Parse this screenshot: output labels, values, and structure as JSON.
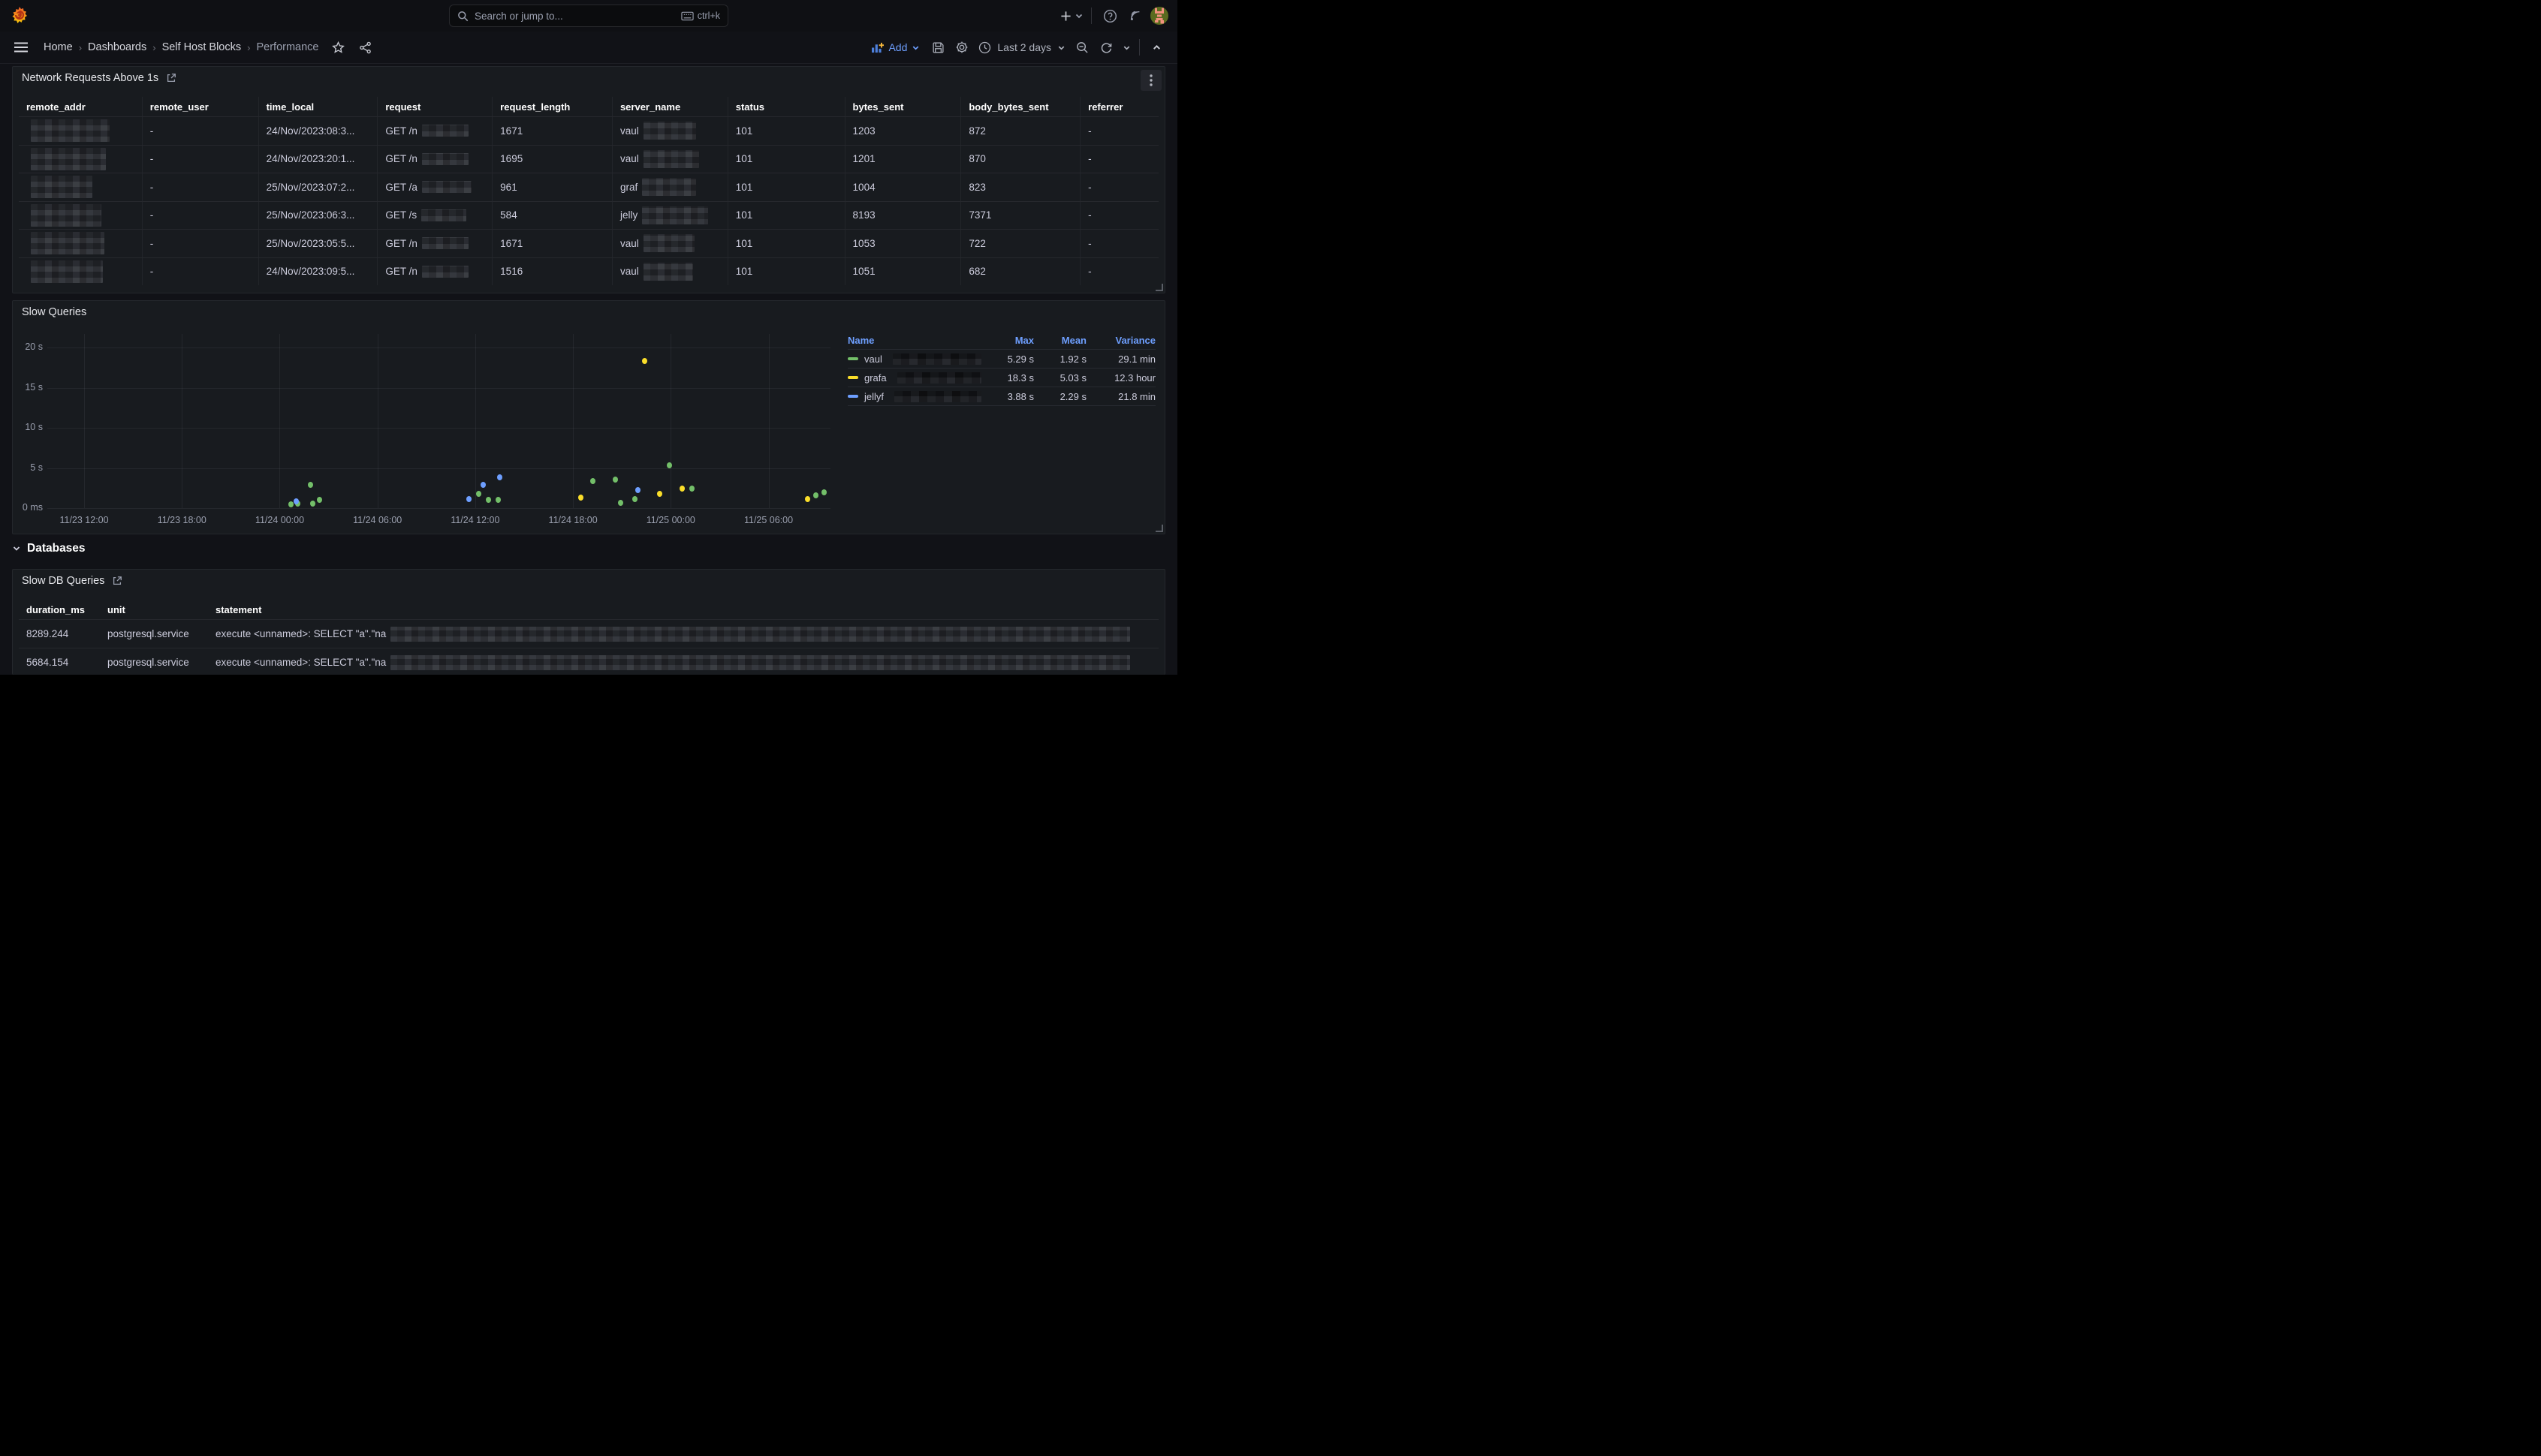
{
  "topnav": {
    "search_placeholder": "Search or jump to...",
    "shortcut_label": "ctrl+k"
  },
  "breadcrumbs": [
    "Home",
    "Dashboards",
    "Self Host Blocks",
    "Performance"
  ],
  "toolbar": {
    "add_label": "Add",
    "time_range_label": "Last 2 days"
  },
  "network_panel": {
    "title": "Network Requests Above 1s",
    "columns": [
      "remote_addr",
      "remote_user",
      "time_local",
      "request",
      "request_length",
      "server_name",
      "status",
      "bytes_sent",
      "body_bytes_sent",
      "referrer"
    ],
    "rows": [
      [
        {
          "r": 105,
          "h": 30
        },
        {
          "t": "-"
        },
        {
          "t": "24/Nov/2023:08:3..."
        },
        {
          "t": "GET /n",
          "r": 62
        },
        {
          "t": "1671"
        },
        {
          "t": "vaul",
          "r": 70,
          "h": 24
        },
        {
          "t": "101"
        },
        {
          "t": "1203"
        },
        {
          "t": "872"
        },
        {
          "t": "-"
        }
      ],
      [
        {
          "r": 100,
          "h": 30
        },
        {
          "t": "-"
        },
        {
          "t": "24/Nov/2023:20:1..."
        },
        {
          "t": "GET /n",
          "r": 62
        },
        {
          "t": "1695"
        },
        {
          "t": "vaul",
          "r": 74,
          "h": 24
        },
        {
          "t": "101"
        },
        {
          "t": "1201"
        },
        {
          "t": "870"
        },
        {
          "t": "-"
        }
      ],
      [
        {
          "r": 82,
          "h": 30
        },
        {
          "t": "-"
        },
        {
          "t": "25/Nov/2023:07:2..."
        },
        {
          "t": "GET /a",
          "r": 66
        },
        {
          "t": "961"
        },
        {
          "t": "graf",
          "r": 72,
          "h": 24
        },
        {
          "t": "101"
        },
        {
          "t": "1004"
        },
        {
          "t": "823"
        },
        {
          "t": "-"
        }
      ],
      [
        {
          "r": 94,
          "h": 30
        },
        {
          "t": "-"
        },
        {
          "t": "25/Nov/2023:06:3..."
        },
        {
          "t": "GET /s",
          "r": 60
        },
        {
          "t": "584"
        },
        {
          "t": "jelly",
          "r": 88,
          "h": 24
        },
        {
          "t": "101"
        },
        {
          "t": "8193"
        },
        {
          "t": "7371"
        },
        {
          "t": "-"
        }
      ],
      [
        {
          "r": 98,
          "h": 30
        },
        {
          "t": "-"
        },
        {
          "t": "25/Nov/2023:05:5..."
        },
        {
          "t": "GET /n",
          "r": 62
        },
        {
          "t": "1671"
        },
        {
          "t": "vaul",
          "r": 68,
          "h": 24
        },
        {
          "t": "101"
        },
        {
          "t": "1053"
        },
        {
          "t": "722"
        },
        {
          "t": "-"
        }
      ],
      [
        {
          "r": 96,
          "h": 30
        },
        {
          "t": "-"
        },
        {
          "t": "24/Nov/2023:09:5..."
        },
        {
          "t": "GET /n",
          "r": 62
        },
        {
          "t": "1516"
        },
        {
          "t": "vaul",
          "r": 66,
          "h": 24
        },
        {
          "t": "101"
        },
        {
          "t": "1051"
        },
        {
          "t": "682"
        },
        {
          "t": "-"
        }
      ]
    ]
  },
  "chart_data": {
    "type": "scatter",
    "title": "Slow Queries",
    "x_domain_hours": [
      -2.26,
      45.8
    ],
    "y_domain_seconds": [
      0,
      21.7
    ],
    "x_ticks": [
      {
        "h": 0,
        "label": "11/23 12:00"
      },
      {
        "h": 6,
        "label": "11/23 18:00"
      },
      {
        "h": 12,
        "label": "11/24 00:00"
      },
      {
        "h": 18,
        "label": "11/24 06:00"
      },
      {
        "h": 24,
        "label": "11/24 12:00"
      },
      {
        "h": 30,
        "label": "11/24 18:00"
      },
      {
        "h": 36,
        "label": "11/25 00:00"
      },
      {
        "h": 42,
        "label": "11/25 06:00"
      }
    ],
    "y_ticks": [
      {
        "v": 0,
        "label": "0 ms"
      },
      {
        "v": 5,
        "label": "5 s"
      },
      {
        "v": 10,
        "label": "10 s"
      },
      {
        "v": 15,
        "label": "15 s"
      },
      {
        "v": 20,
        "label": "20 s"
      }
    ],
    "series": [
      {
        "name_prefix": "vaul",
        "redacted": true,
        "color": "#73BF69",
        "points": [
          [
            12.7,
            0.5
          ],
          [
            13.1,
            0.55
          ],
          [
            13.9,
            2.9
          ],
          [
            14.05,
            0.6
          ],
          [
            14.45,
            1.0
          ],
          [
            24.2,
            1.76
          ],
          [
            24.8,
            1.06
          ],
          [
            25.4,
            0.99
          ],
          [
            31.2,
            3.4
          ],
          [
            32.6,
            3.55
          ],
          [
            32.9,
            0.7
          ],
          [
            33.8,
            1.15
          ],
          [
            35.9,
            5.29
          ],
          [
            37.3,
            2.4
          ],
          [
            44.9,
            1.6
          ],
          [
            45.4,
            2.0
          ]
        ]
      },
      {
        "name_prefix": "grafa",
        "redacted": true,
        "color": "#FADE2A",
        "points": [
          [
            30.5,
            1.27
          ],
          [
            34.4,
            18.3
          ],
          [
            35.3,
            1.8
          ],
          [
            36.7,
            2.4
          ],
          [
            44.4,
            1.1
          ]
        ]
      },
      {
        "name_prefix": "jellyf",
        "redacted": true,
        "color": "#6E9FFF",
        "points": [
          [
            13.0,
            0.8
          ],
          [
            23.6,
            1.15
          ],
          [
            24.5,
            2.89
          ],
          [
            25.5,
            3.87
          ],
          [
            34.0,
            2.2
          ]
        ]
      }
    ],
    "legend": {
      "columns": [
        "Name",
        "Max",
        "Mean",
        "Variance"
      ],
      "rows": [
        {
          "name_prefix": "vaul",
          "color": "#73BF69",
          "max": "5.29 s",
          "mean": "1.92 s",
          "variance": "29.1 min"
        },
        {
          "name_prefix": "grafa",
          "color": "#FADE2A",
          "max": "18.3 s",
          "mean": "5.03 s",
          "variance": "12.3 hour"
        },
        {
          "name_prefix": "jellyf",
          "color": "#6E9FFF",
          "max": "3.88 s",
          "mean": "2.29 s",
          "variance": "21.8 min"
        }
      ]
    }
  },
  "sections": {
    "databases": "Databases"
  },
  "db_panel": {
    "title": "Slow DB Queries",
    "columns": [
      "duration_ms",
      "unit",
      "statement"
    ],
    "rows": [
      [
        {
          "t": "8289.244"
        },
        {
          "t": "postgresql.service"
        },
        {
          "t": "execute <unnamed>: SELECT \"a\".\"na",
          "r": 985,
          "h": 20
        }
      ],
      [
        {
          "t": "5684.154"
        },
        {
          "t": "postgresql.service"
        },
        {
          "t": "execute <unnamed>: SELECT \"a\".\"na",
          "r": 985,
          "h": 20
        }
      ]
    ]
  }
}
